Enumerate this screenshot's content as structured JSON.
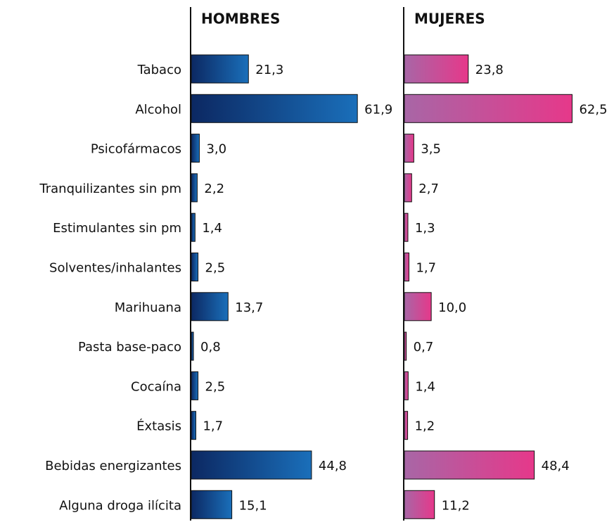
{
  "chart_data": {
    "type": "bar",
    "orientation": "horizontal",
    "categories": [
      "Tabaco",
      "Alcohol",
      "Psicofármacos",
      "Tranquilizantes sin pm",
      "Estimulantes sin pm",
      "Solventes/inhalantes",
      "Marihuana",
      "Pasta base-paco",
      "Cocaína",
      "Éxtasis",
      "Bebidas energizantes",
      "Alguna droga ilícita"
    ],
    "series": [
      {
        "name": "HOMBRES",
        "color": [
          "#0c2862",
          "#1a6fba"
        ],
        "values": [
          21.3,
          61.9,
          3.0,
          2.2,
          1.4,
          2.5,
          13.7,
          0.8,
          2.5,
          1.7,
          44.8,
          15.1
        ],
        "value_labels": [
          "21,3",
          "61,9",
          "3,0",
          "2,2",
          "1,4",
          "2,5",
          "13,7",
          "0,8",
          "2,5",
          "1,7",
          "44,8",
          "15,1"
        ]
      },
      {
        "name": "MUJERES",
        "color": [
          "#a866a6",
          "#e6388a"
        ],
        "values": [
          23.8,
          62.5,
          3.5,
          2.7,
          1.3,
          1.7,
          10.0,
          0.7,
          1.4,
          1.2,
          48.4,
          11.2
        ],
        "value_labels": [
          "23,8",
          "62,5",
          "3,5",
          "2,7",
          "1,3",
          "1,7",
          "10,0",
          "0,7",
          "1,4",
          "1,2",
          "48,4",
          "11,2"
        ]
      }
    ],
    "xlim": [
      0,
      65
    ]
  }
}
